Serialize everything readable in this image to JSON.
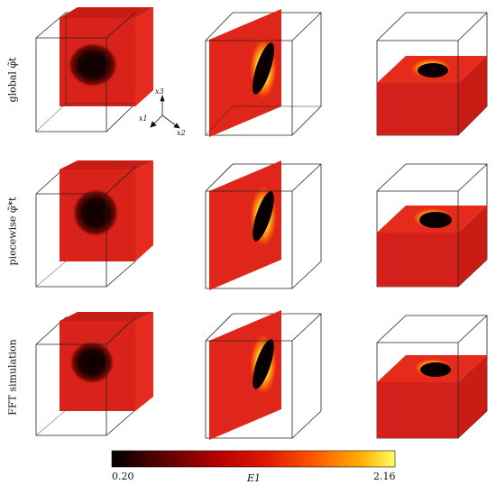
{
  "figure": {
    "rows": [
      {
        "label": "global φ̃t"
      },
      {
        "label": "piecewise φ̃*t"
      },
      {
        "label": "FFT simulation"
      }
    ],
    "columns": [
      {
        "slice": "x1-x3 plane (front section)"
      },
      {
        "slice": "x2-x3 plane (diagonal section)"
      },
      {
        "slice": "x1-x2 plane (horizontal section)"
      }
    ],
    "axes": {
      "x1": "x1",
      "x2": "x2",
      "x3": "x3"
    },
    "colorbar": {
      "min_label": "0.20",
      "max_label": "2.16",
      "quantity": "E1",
      "min": 0.2,
      "max": 2.16,
      "colors": [
        "#000000",
        "#5a0000",
        "#b80000",
        "#e01a00",
        "#ff5a00",
        "#ffb000",
        "#ffff66"
      ]
    }
  }
}
